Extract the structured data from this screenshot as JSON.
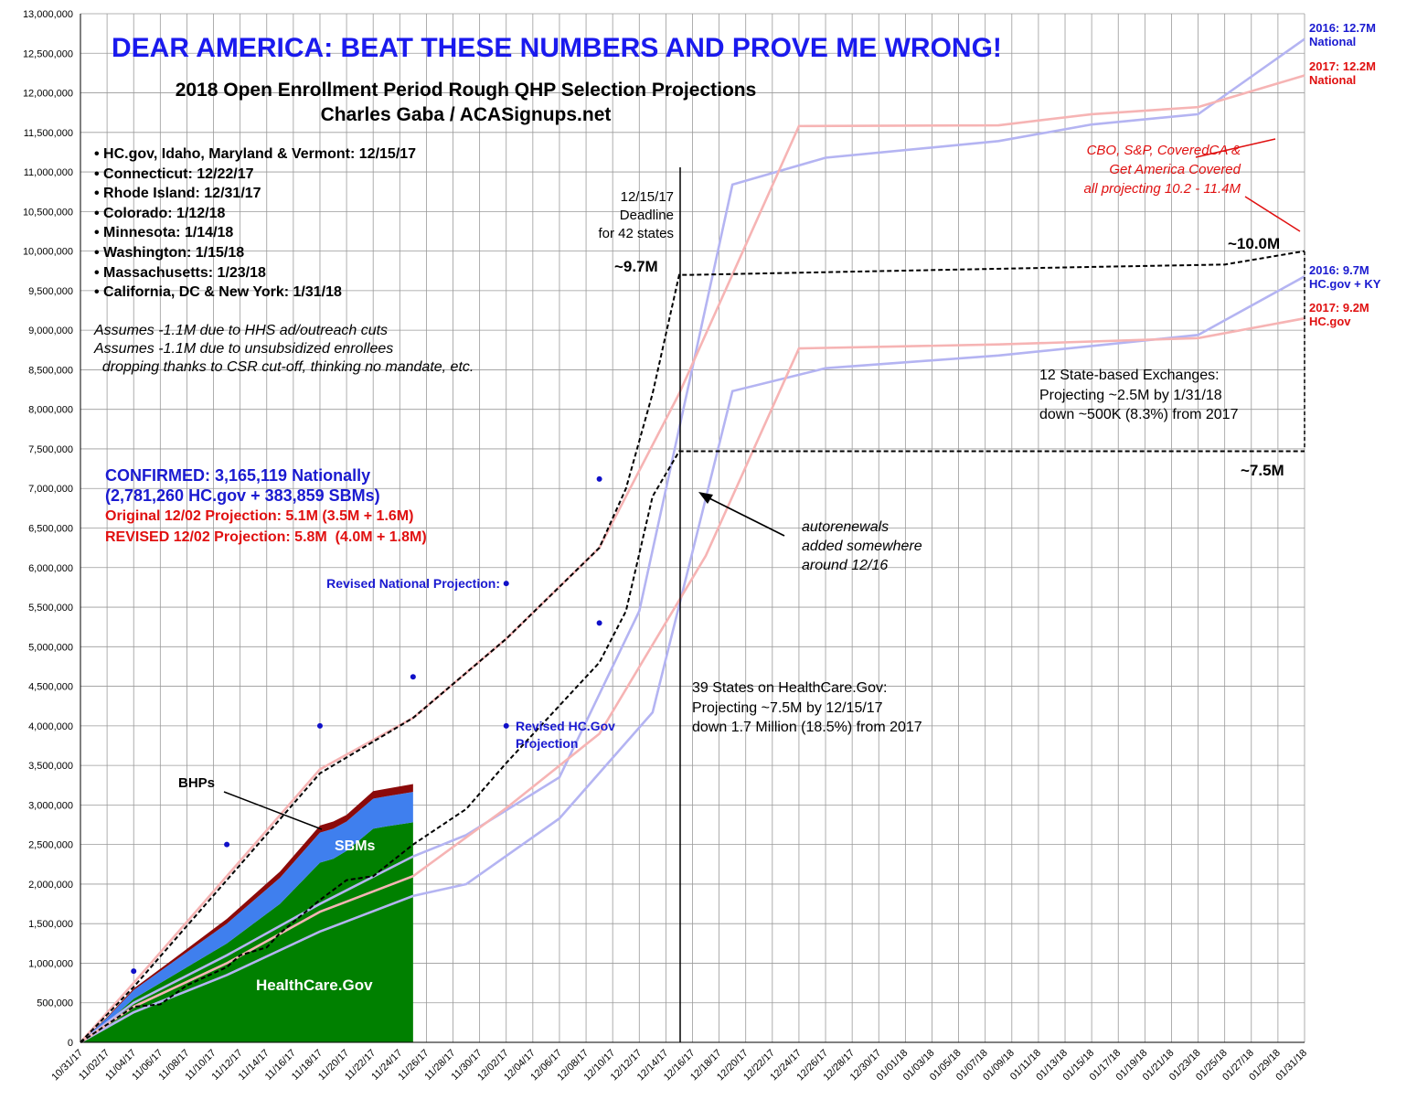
{
  "chart_data": {
    "type": "line",
    "headline": "DEAR AMERICA: BEAT THESE NUMBERS AND PROVE ME WRONG!",
    "title": "2018 Open Enrollment Period Rough QHP Selection Projections",
    "subtitle": "Charles Gaba / ACASignups.net",
    "annotations": {
      "deadlines": [
        "HC.gov, Idaho, Maryland & Vermont: 12/15/17",
        "Connecticut: 12/22/17",
        "Rhode Island: 12/31/17",
        "Colorado: 1/12/18",
        "Minnesota: 1/14/18",
        "Washington: 1/15/18",
        "Massachusetts: 1/23/18",
        "California, DC & New York: 1/31/18"
      ],
      "assumptions": "Assumes -1.1M due to HHS ad/outreach cuts\nAssumes -1.1M due to unsubsidized enrollees\n  dropping thanks to CSR cut-off, thinking no mandate, etc.",
      "confirmed": "CONFIRMED: 3,165,119 Nationally\n(2,781,260 HC.gov + 383,859 SBMs)",
      "original": "Original 12/02 Projection: 5.1M (3.5M + 1.6M)",
      "revised": "REVISED 12/02 Projection: 5.8M  (4.0M + 1.8M)",
      "deadline": "12/15/17\nDeadline\nfor 42 states",
      "national_peak": "~9.7M",
      "national_end": "~10.0M",
      "hcgov_end": "~7.5M",
      "others": "CBO, S&P, CoveredCA &\nGet America Covered\nall projecting 10.2 - 11.4M",
      "sbe": "12 State-based Exchanges:\nProjecting ~2.5M by 1/31/18\ndown ~500K (8.3%) from 2017",
      "hcgov": "39 States on HealthCare.Gov:\nProjecting ~7.5M by 12/15/17\ndown 1.7 Million (18.5%) from 2017",
      "autorenewals": "autorenewals\nadded somewhere\naround 12/16"
    },
    "xlim": [
      "10/31/17",
      "01/31/18"
    ],
    "xticks": [
      "10/31/17",
      "11/02/17",
      "11/04/17",
      "11/06/17",
      "11/08/17",
      "11/10/17",
      "11/12/17",
      "11/14/17",
      "11/16/17",
      "11/18/17",
      "11/20/17",
      "11/22/17",
      "11/24/17",
      "11/26/17",
      "11/28/17",
      "11/30/17",
      "12/02/17",
      "12/04/17",
      "12/06/17",
      "12/08/17",
      "12/10/17",
      "12/12/17",
      "12/14/17",
      "12/16/17",
      "12/18/17",
      "12/20/17",
      "12/22/17",
      "12/24/17",
      "12/26/17",
      "12/28/17",
      "12/30/17",
      "01/01/18",
      "01/03/18",
      "01/05/18",
      "01/07/18",
      "01/09/18",
      "01/11/18",
      "01/13/18",
      "01/15/18",
      "01/17/18",
      "01/19/18",
      "01/21/18",
      "01/23/18",
      "01/25/18",
      "01/27/18",
      "01/29/18",
      "01/31/18"
    ],
    "ylim": [
      0,
      13000000
    ],
    "yticks": [
      0,
      {
        "value": 500000,
        "label": "500,000"
      },
      {
        "value": 1000000,
        "label": "1,000,000"
      },
      {
        "value": 1500000,
        "label": "1,500,000"
      },
      {
        "value": 2000000,
        "label": "2,000,000"
      },
      {
        "value": 2500000,
        "label": "2,500,000"
      },
      {
        "value": 3000000,
        "label": "3,000,000"
      },
      {
        "value": 3500000,
        "label": "3,500,000"
      },
      {
        "value": 4000000,
        "label": "4,000,000"
      },
      {
        "value": 4500000,
        "label": "4,500,000"
      },
      {
        "value": 5000000,
        "label": "5,000,000"
      },
      {
        "value": 5500000,
        "label": "5,500,000"
      },
      {
        "value": 6000000,
        "label": "6,000,000"
      },
      {
        "value": 6500000,
        "label": "6,500,000"
      },
      {
        "value": 7000000,
        "label": "7,000,000"
      },
      {
        "value": 7500000,
        "label": "7,500,000"
      },
      {
        "value": 8000000,
        "label": "8,000,000"
      },
      {
        "value": 8500000,
        "label": "8,500,000"
      },
      {
        "value": 9000000,
        "label": "9,000,000"
      },
      {
        "value": 9500000,
        "label": "9,500,000"
      },
      {
        "value": 10000000,
        "label": "10,000,000"
      },
      {
        "value": 10500000,
        "label": "10,500,000"
      },
      {
        "value": 11000000,
        "label": "11,000,000"
      },
      {
        "value": 11500000,
        "label": "11,500,000"
      },
      {
        "value": 12000000,
        "label": "12,000,000"
      },
      {
        "value": 12500000,
        "label": "12,500,000"
      },
      {
        "value": 13000000,
        "label": "13,000,000"
      }
    ],
    "grid": true,
    "series": [
      {
        "name": "HealthCare.Gov",
        "type": "area",
        "color": "#008000",
        "label_color": "#ffffff",
        "x": [
          "10/31/17",
          "11/02/17",
          "11/04/17",
          "11/07/17",
          "11/11/17",
          "11/15/17",
          "11/18/17",
          "11/19/17",
          "11/20/17",
          "11/22/17",
          "11/23/17",
          "11/25/17"
        ],
        "values": [
          0,
          250000,
          550000,
          850000,
          1250000,
          1750000,
          2270000,
          2320000,
          2420000,
          2700000,
          2730000,
          2781260
        ]
      },
      {
        "name": "SBMs",
        "type": "area",
        "color": "#3f7fee",
        "label_color": "#ffffff",
        "x": [
          "10/31/17",
          "11/02/17",
          "11/04/17",
          "11/07/17",
          "11/11/17",
          "11/15/17",
          "11/18/17",
          "11/19/17",
          "11/20/17",
          "11/22/17",
          "11/23/17",
          "11/25/17"
        ],
        "values": [
          0,
          60000,
          110000,
          170000,
          250000,
          330000,
          380000,
          380000,
          370000,
          380000,
          380000,
          383859
        ]
      },
      {
        "name": "BHPs",
        "type": "area",
        "color": "#8b0a0a",
        "label_color": "#000000",
        "x": [
          "10/31/17",
          "11/02/17",
          "11/04/17",
          "11/07/17",
          "11/11/17",
          "11/15/17",
          "11/18/17",
          "11/19/17",
          "11/20/17",
          "11/22/17",
          "11/23/17",
          "11/25/17"
        ],
        "values": [
          0,
          10000,
          20000,
          35000,
          60000,
          80000,
          90000,
          90000,
          85000,
          95000,
          95000,
          100000
        ]
      },
      {
        "name": "2016: 12.7M National",
        "type": "line",
        "color": "#b4b4f2",
        "label_color": "#1a1ad0",
        "x": [
          "10/31/17",
          "11/04/17",
          "11/11/17",
          "11/18/17",
          "11/25/17",
          "11/29/17",
          "12/06/17",
          "12/12/17",
          "12/19/17",
          "12/26/17",
          "01/08/18",
          "01/15/18",
          "01/23/18",
          "01/31/18"
        ],
        "values": [
          0,
          500000,
          1100000,
          1750000,
          2350000,
          2620000,
          3350000,
          5450000,
          10840000,
          11180000,
          11390000,
          11600000,
          11730000,
          12680000
        ]
      },
      {
        "name": "2017: 12.2M National",
        "type": "line",
        "color": "#f6b4b4",
        "label_color": "#e01010",
        "x": [
          "10/31/17",
          "11/04/17",
          "11/11/17",
          "11/18/17",
          "11/25/17",
          "12/02/17",
          "12/09/17",
          "12/15/17",
          "12/24/17",
          "01/08/18",
          "01/15/18",
          "01/23/18",
          "01/31/18"
        ],
        "values": [
          0,
          750000,
          2100000,
          3450000,
          4100000,
          5100000,
          6250000,
          8200000,
          11580000,
          11590000,
          11730000,
          11820000,
          12220000
        ]
      },
      {
        "name": "2016: 9.7M HC.gov + KY",
        "type": "line",
        "color": "#b4b4f2",
        "label_color": "#1a1ad0",
        "x": [
          "10/31/17",
          "11/04/17",
          "11/11/17",
          "11/18/17",
          "11/25/17",
          "11/29/17",
          "12/06/17",
          "12/13/17",
          "12/19/17",
          "12/26/17",
          "01/08/18",
          "01/15/18",
          "01/23/18",
          "01/31/18"
        ],
        "values": [
          0,
          380000,
          850000,
          1400000,
          1850000,
          2000000,
          2830000,
          4170000,
          8230000,
          8520000,
          8680000,
          8800000,
          8940000,
          9680000
        ]
      },
      {
        "name": "2017: 9.2M HC.gov",
        "type": "line",
        "color": "#f6b4b4",
        "label_color": "#e01010",
        "x": [
          "10/31/17",
          "11/04/17",
          "11/11/17",
          "11/18/17",
          "11/25/17",
          "12/02/17",
          "12/09/17",
          "12/17/17",
          "12/24/17",
          "01/08/18",
          "01/23/18",
          "01/31/18"
        ],
        "values": [
          0,
          450000,
          1000000,
          1650000,
          2100000,
          2960000,
          3900000,
          6150000,
          8770000,
          8820000,
          8900000,
          9150000
        ]
      },
      {
        "type": "line",
        "dashed": true,
        "color": "#000000",
        "x": [
          "10/31/17",
          "11/04/17",
          "11/18/17",
          "11/25/17",
          "12/02/17",
          "12/09/17",
          "12/11/17",
          "12/13/17",
          "12/15/17",
          "12/16/17",
          "01/15/18",
          "01/25/18",
          "01/31/18"
        ],
        "values": [
          0,
          700000,
          3400000,
          4100000,
          5100000,
          6250000,
          7000000,
          8200000,
          9700000,
          9700000,
          9800000,
          9830000,
          10000000
        ]
      },
      {
        "type": "line",
        "dashed": true,
        "color": "#000000",
        "x": [
          "10/31/17",
          "11/04/17",
          "11/06/17",
          "11/08/17",
          "11/11/17",
          "11/12/17",
          "11/14/17",
          "11/15/17",
          "11/18/17",
          "11/20/17",
          "11/22/17",
          "11/25/17",
          "11/29/17",
          "12/02/17",
          "12/09/17",
          "12/11/17",
          "12/13/17",
          "12/15/17",
          "12/16/17",
          "01/31/18"
        ],
        "values": [
          0,
          450000,
          480000,
          720000,
          950000,
          1100000,
          1200000,
          1380000,
          1800000,
          2050000,
          2100000,
          2500000,
          2950000,
          3530000,
          4800000,
          5450000,
          6900000,
          7470000,
          7470000,
          7470000
        ]
      },
      {
        "name": "Revised National Projection:",
        "type": "scatter",
        "color": "#1010c8",
        "label_color": "#1a1ad0",
        "x": [
          "11/04/17",
          "11/11/17",
          "11/18/17",
          "11/25/17",
          "12/02/17",
          "12/09/17"
        ],
        "values": [
          900000,
          2500000,
          4000000,
          4620000,
          5800000,
          7120000
        ]
      },
      {
        "name": "Revised HC.Gov Projection",
        "type": "scatter",
        "color": "#1010c8",
        "label_color": "#1a1ad0",
        "x": [
          "12/02/17",
          "12/09/17"
        ],
        "values": [
          4000000,
          5300000
        ]
      }
    ]
  }
}
